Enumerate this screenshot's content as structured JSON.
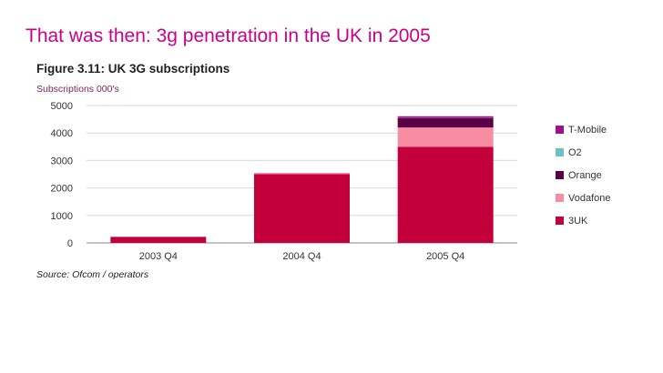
{
  "slide": {
    "title": "That was then: 3g penetration in the UK in 2005"
  },
  "figure": {
    "title": "Figure 3.11: UK 3G subscriptions",
    "y_unit_label": "Subscriptions 000's",
    "source": "Source: Ofcom / operators"
  },
  "chart_data": {
    "type": "bar",
    "stacked": true,
    "title": "Figure 3.11: UK 3G subscriptions",
    "xlabel": "",
    "ylabel": "Subscriptions 000's",
    "ylim": [
      0,
      5000
    ],
    "yticks": [
      0,
      1000,
      2000,
      3000,
      4000,
      5000
    ],
    "grid": true,
    "legend_position": "right",
    "categories": [
      "2003 Q4",
      "2004 Q4",
      "2005 Q4"
    ],
    "series": [
      {
        "name": "3UK",
        "color": "#c4003c",
        "values": [
          220,
          2500,
          3500
        ]
      },
      {
        "name": "Vodafone",
        "color": "#f78ca3",
        "values": [
          0,
          50,
          700
        ]
      },
      {
        "name": "Orange",
        "color": "#5a0048",
        "values": [
          0,
          0,
          350
        ]
      },
      {
        "name": "O2",
        "color": "#6cc0c8",
        "values": [
          0,
          0,
          10
        ]
      },
      {
        "name": "T-Mobile",
        "color": "#a0108c",
        "values": [
          0,
          0,
          50
        ]
      }
    ],
    "legend_order": [
      "T-Mobile",
      "O2",
      "Orange",
      "Vodafone",
      "3UK"
    ]
  }
}
